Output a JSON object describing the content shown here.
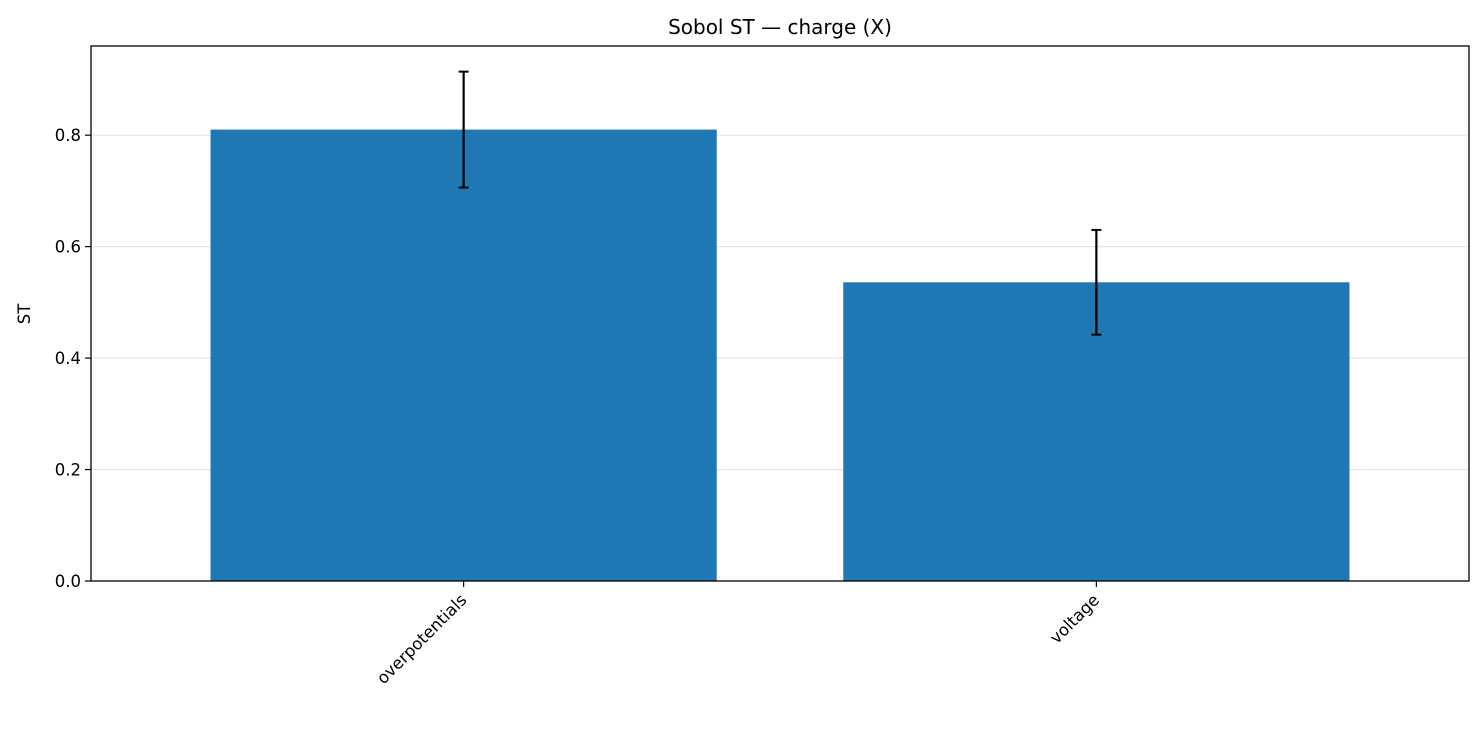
{
  "chart_data": {
    "type": "bar",
    "title": "Sobol ST — charge (X)",
    "xlabel": "",
    "ylabel": "ST",
    "categories": [
      "overpotentials",
      "voltage"
    ],
    "series": [
      {
        "values": [
          0.81,
          0.536
        ],
        "errors": [
          0.104,
          0.094
        ]
      }
    ],
    "ylim": [
      0,
      0.96
    ],
    "yticks": [
      "0.0",
      "0.2",
      "0.4",
      "0.6",
      "0.8"
    ],
    "grid": "y",
    "colors": {
      "bar": "#1f77b4",
      "error": "#000000",
      "grid": "#e6e6e6"
    }
  }
}
